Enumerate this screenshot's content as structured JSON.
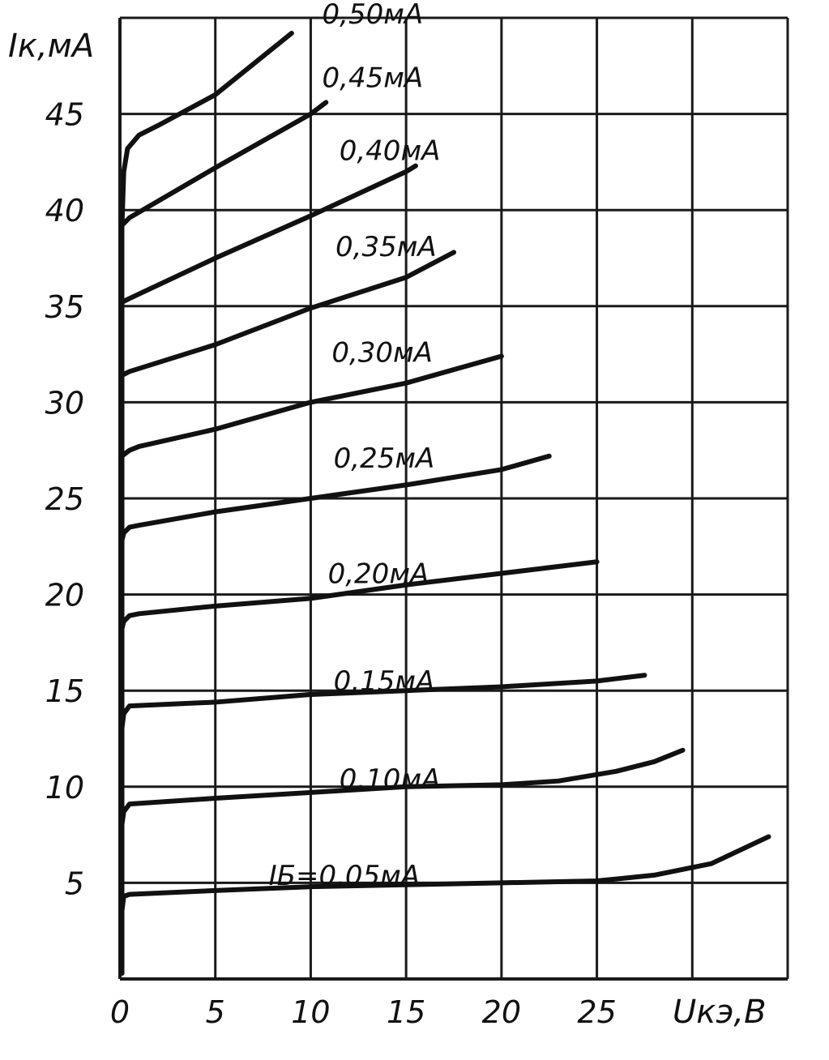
{
  "chart_data": {
    "type": "line",
    "xlabel": "Uкэ,В",
    "ylabel": "Iк,мА",
    "xlim": [
      0,
      35
    ],
    "ylim": [
      0,
      50
    ],
    "grid": true,
    "x_ticks": [
      0,
      5,
      10,
      15,
      20,
      25
    ],
    "x_tick_labels": [
      "0",
      "5",
      "10",
      "15",
      "20",
      "25"
    ],
    "y_ticks": [
      5,
      10,
      15,
      20,
      25,
      30,
      35,
      40,
      45
    ],
    "y_tick_labels": [
      "5",
      "10",
      "15",
      "20",
      "25",
      "30",
      "35",
      "40",
      "45"
    ],
    "series": [
      {
        "name": "IБ=0,05мА",
        "points": [
          [
            0.1,
            3.5
          ],
          [
            0.2,
            4.3
          ],
          [
            0.5,
            4.4
          ],
          [
            5,
            4.6
          ],
          [
            10,
            4.8
          ],
          [
            15,
            4.9
          ],
          [
            20,
            5.0
          ],
          [
            25,
            5.1
          ],
          [
            28,
            5.4
          ],
          [
            31,
            6.0
          ],
          [
            34,
            7.4
          ]
        ]
      },
      {
        "name": "0,10мА",
        "points": [
          [
            0.1,
            8.0
          ],
          [
            0.2,
            8.7
          ],
          [
            0.5,
            9.1
          ],
          [
            5,
            9.4
          ],
          [
            10,
            9.7
          ],
          [
            15,
            10.0
          ],
          [
            20,
            10.1
          ],
          [
            23,
            10.3
          ],
          [
            26,
            10.8
          ],
          [
            28,
            11.3
          ],
          [
            29.5,
            11.9
          ]
        ]
      },
      {
        "name": "0,15мА",
        "points": [
          [
            0.1,
            13.0
          ],
          [
            0.2,
            13.8
          ],
          [
            0.5,
            14.2
          ],
          [
            5,
            14.4
          ],
          [
            10,
            14.8
          ],
          [
            15,
            15.0
          ],
          [
            20,
            15.2
          ],
          [
            25,
            15.5
          ],
          [
            27.5,
            15.8
          ]
        ]
      },
      {
        "name": "0,20мА",
        "points": [
          [
            0.1,
            18.2
          ],
          [
            0.2,
            18.6
          ],
          [
            0.5,
            18.9
          ],
          [
            1,
            19.0
          ],
          [
            5,
            19.4
          ],
          [
            10,
            19.8
          ],
          [
            15,
            20.5
          ],
          [
            20,
            21.1
          ],
          [
            25,
            21.7
          ]
        ]
      },
      {
        "name": "0,25мА",
        "points": [
          [
            0.1,
            22.8
          ],
          [
            0.2,
            23.2
          ],
          [
            0.5,
            23.5
          ],
          [
            1,
            23.6
          ],
          [
            5,
            24.3
          ],
          [
            10,
            25.0
          ],
          [
            15,
            25.7
          ],
          [
            20,
            26.5
          ],
          [
            22.5,
            27.2
          ]
        ]
      },
      {
        "name": "0,30мА",
        "points": [
          [
            0.1,
            27.2
          ],
          [
            0.5,
            27.5
          ],
          [
            1,
            27.7
          ],
          [
            5,
            28.6
          ],
          [
            10,
            30.0
          ],
          [
            15,
            31.0
          ],
          [
            20,
            32.4
          ]
        ]
      },
      {
        "name": "0,35мА",
        "points": [
          [
            0.1,
            31.4
          ],
          [
            0.5,
            31.6
          ],
          [
            5,
            33.0
          ],
          [
            10,
            34.9
          ],
          [
            15,
            36.5
          ],
          [
            17.5,
            37.8
          ]
        ]
      },
      {
        "name": "0,40мА",
        "points": [
          [
            0.1,
            35.2
          ],
          [
            0.5,
            35.4
          ],
          [
            5,
            37.5
          ],
          [
            10,
            39.7
          ],
          [
            15,
            42.0
          ],
          [
            15.5,
            42.3
          ]
        ]
      },
      {
        "name": "0,45мА",
        "points": [
          [
            0.1,
            39.2
          ],
          [
            0.5,
            39.6
          ],
          [
            5,
            42.2
          ],
          [
            10,
            45.0
          ],
          [
            10.8,
            45.6
          ]
        ]
      },
      {
        "name": "0,50мА",
        "points": [
          [
            0.1,
            39.0
          ],
          [
            0.2,
            42.0
          ],
          [
            0.4,
            43.2
          ],
          [
            1,
            43.9
          ],
          [
            2,
            44.4
          ],
          [
            5,
            46.0
          ],
          [
            9,
            49.2
          ]
        ]
      }
    ],
    "curve_labels": [
      {
        "text": "0,50мА",
        "x": 10.6,
        "y": 49.7
      },
      {
        "text": "0,45мА",
        "x": 10.6,
        "y": 46.4
      },
      {
        "text": "0,40мА",
        "x": 11.5,
        "y": 42.6
      },
      {
        "text": "0,35мА",
        "x": 11.3,
        "y": 37.6
      },
      {
        "text": "0,30мА",
        "x": 11.1,
        "y": 32.1
      },
      {
        "text": "0,25мА",
        "x": 11.2,
        "y": 26.6
      },
      {
        "text": "0,20мА",
        "x": 10.9,
        "y": 20.6
      },
      {
        "text": "0,15мА",
        "x": 11.2,
        "y": 15.0
      },
      {
        "text": "0,10мА",
        "x": 11.5,
        "y": 9.9
      },
      {
        "text": "IБ=0,05мА",
        "x": 7.8,
        "y": 4.9
      }
    ]
  }
}
